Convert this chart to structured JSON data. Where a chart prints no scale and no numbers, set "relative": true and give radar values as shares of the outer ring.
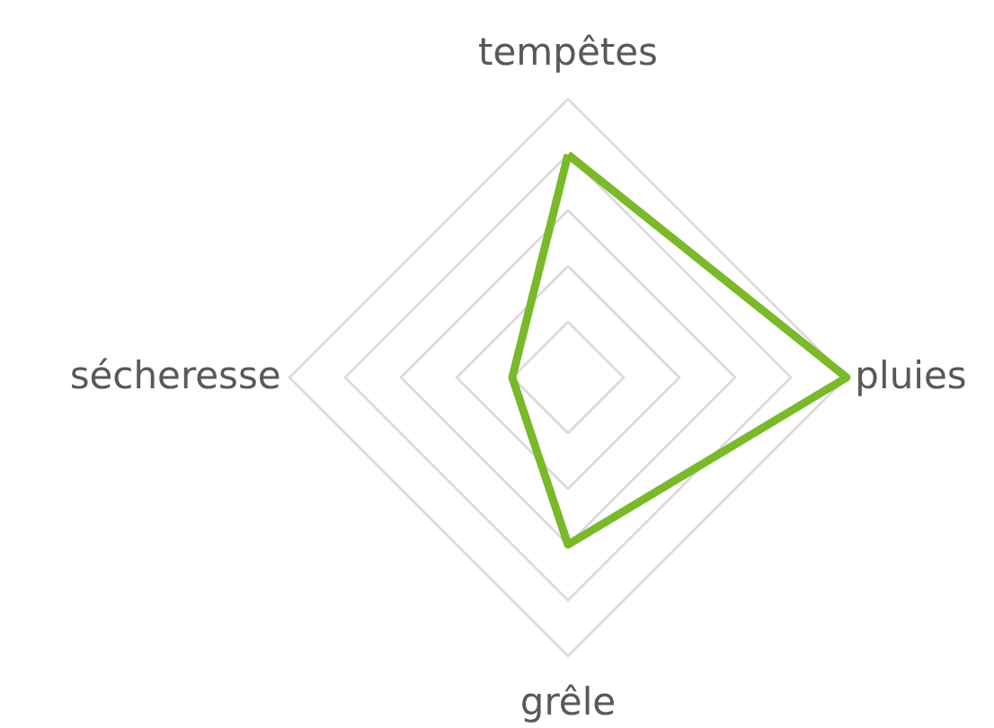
{
  "chart_data": {
    "type": "radar",
    "relative": true,
    "grid": true,
    "categories": [
      "tempêtes",
      "pluies",
      "grêle",
      "sécheresse"
    ],
    "series": [
      {
        "color": "#7ab929",
        "values": [
          0.8,
          1.0,
          0.6,
          0.2
        ]
      }
    ]
  }
}
